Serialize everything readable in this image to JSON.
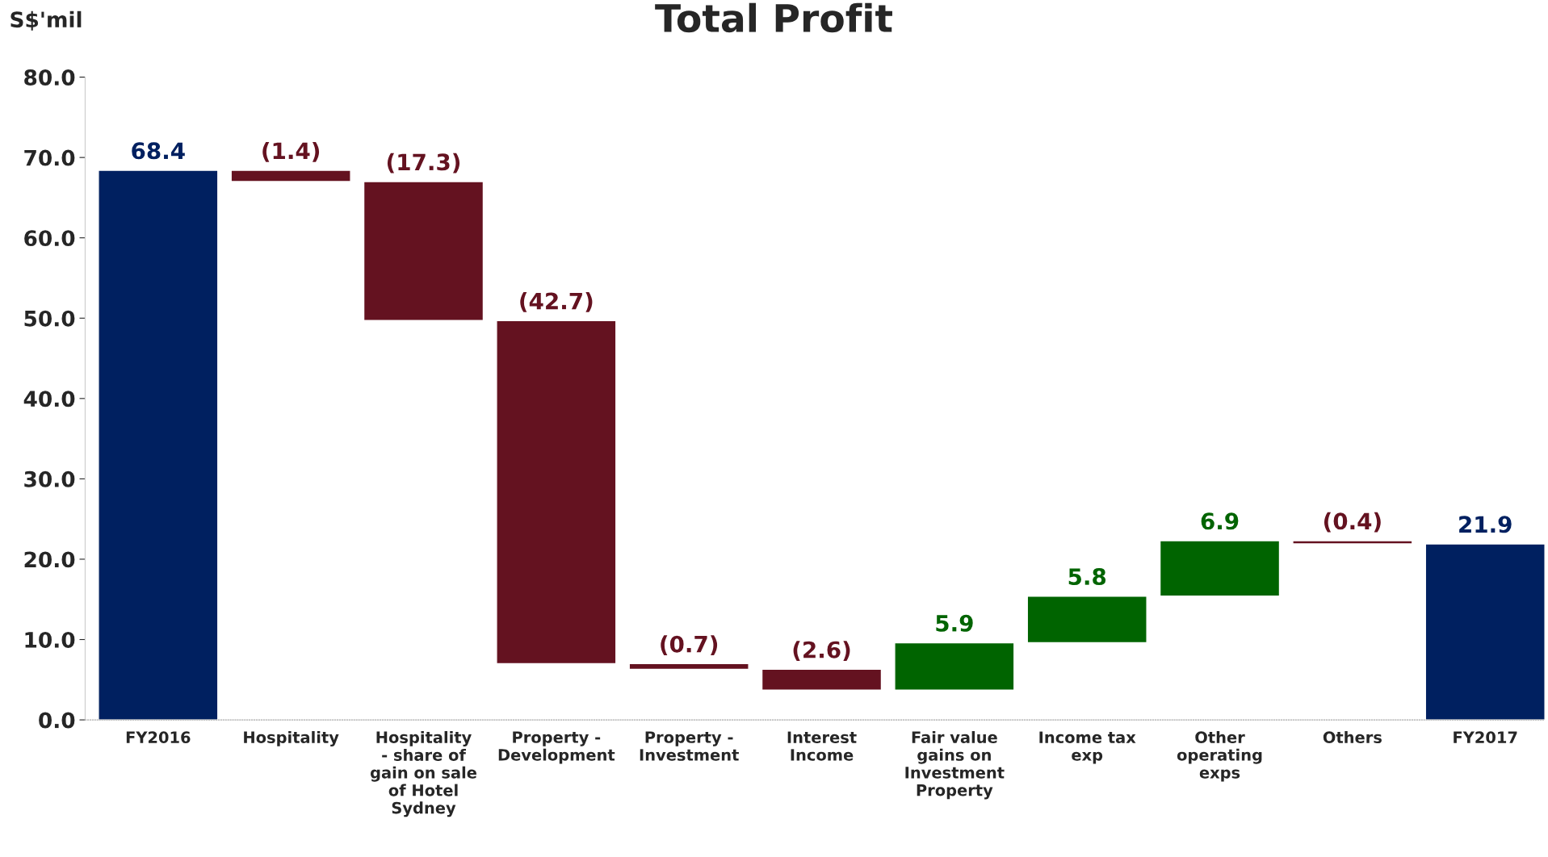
{
  "chart_data": {
    "type": "bar",
    "title": "Total Profit",
    "ylabel": "S$'mil",
    "categories": [
      "FY2016",
      "Hospitality",
      "Hospitality - share of gain on sale of Hotel Sydney",
      "Property - Development",
      "Property - Investment",
      "Interest Income",
      "Fair value gains on Investment Property",
      "Income tax exp",
      "Other operating exps",
      "Others",
      "FY2017"
    ],
    "values": [
      68.4,
      -1.4,
      -17.3,
      -42.7,
      -0.7,
      -2.6,
      5.9,
      5.8,
      6.9,
      -0.4,
      21.9
    ],
    "base": [
      0,
      68.4,
      67.0,
      49.7,
      7.0,
      6.3,
      3.7,
      9.6,
      15.4,
      22.3,
      0
    ],
    "colors": [
      "#002060",
      "#641220",
      "#641220",
      "#641220",
      "#641220",
      "#641220",
      "#006400",
      "#006400",
      "#006400",
      "#641220",
      "#002060"
    ],
    "value_labels": [
      "68.4",
      "(1.4)",
      "(17.3)",
      "(42.7)",
      "(0.7)",
      "(2.6)",
      "5.9",
      "5.8",
      "6.9",
      "(0.4)",
      "21.9"
    ],
    "ylim": [
      0,
      80
    ],
    "yticks": [
      {
        "value": 0,
        "label": "0.0"
      },
      {
        "value": 10,
        "label": "10.0"
      },
      {
        "value": 20,
        "label": "20.0"
      },
      {
        "value": 30,
        "label": "30.0"
      },
      {
        "value": 40,
        "label": "40.0"
      },
      {
        "value": 50,
        "label": "50.0"
      },
      {
        "value": 60,
        "label": "60.0"
      },
      {
        "value": 70,
        "label": "70.0"
      },
      {
        "value": 80,
        "label": "80.0"
      }
    ],
    "grid": false,
    "legend": false
  }
}
